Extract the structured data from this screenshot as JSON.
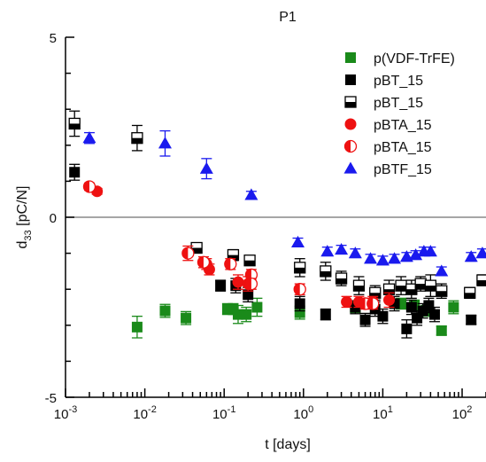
{
  "chart_data": {
    "type": "scatter",
    "title": "P1",
    "xlabel": "t [days]",
    "ylabel_main": "d",
    "ylabel_sub": "33",
    "ylabel_unit": " [pC/N]",
    "xscale": "log",
    "xlim": [
      0.001,
      200
    ],
    "ylim": [
      -5,
      5
    ],
    "x_ticks": [
      {
        "value": 0.001,
        "base": "10",
        "exp": "-3"
      },
      {
        "value": 0.01,
        "base": "10",
        "exp": "-2"
      },
      {
        "value": 0.1,
        "base": "10",
        "exp": "-1"
      },
      {
        "value": 1,
        "base": "10",
        "exp": "0"
      },
      {
        "value": 10,
        "base": "10",
        "exp": "1"
      },
      {
        "value": 100,
        "base": "10",
        "exp": "2"
      }
    ],
    "y_ticks": [
      {
        "value": -5,
        "label": "-5"
      },
      {
        "value": 0,
        "label": "0"
      },
      {
        "value": 5,
        "label": "5"
      }
    ],
    "reference_line": 0,
    "legend_position": "top-right",
    "series": [
      {
        "name": "p(VDF-TrFE)",
        "color": "#1a8a1a",
        "marker": "square",
        "fill": "full",
        "points": [
          [
            0.008,
            -3.05,
            0.3
          ],
          [
            0.018,
            -2.6,
            0.18
          ],
          [
            0.033,
            -2.8,
            0.18
          ],
          [
            0.11,
            -2.55,
            0.15
          ],
          [
            0.13,
            -2.55,
            0.15
          ],
          [
            0.15,
            -2.7,
            0.25
          ],
          [
            0.19,
            -2.7,
            0.2
          ],
          [
            0.26,
            -2.5,
            0.25
          ],
          [
            0.9,
            -2.65,
            0.18
          ],
          [
            4.5,
            -2.5,
            0.15
          ],
          [
            17,
            -2.4,
            0.15
          ],
          [
            25,
            -2.45,
            0.15
          ],
          [
            35,
            -2.6,
            0.15
          ],
          [
            55,
            -3.15,
            0.12
          ],
          [
            78,
            -2.5,
            0.18
          ]
        ]
      },
      {
        "name": "pBT_15",
        "color": "#000000",
        "marker": "square",
        "fill": "full",
        "points": [
          [
            0.0013,
            1.25,
            0.22
          ],
          [
            0.09,
            -1.9,
            0.15
          ],
          [
            0.14,
            -1.9,
            0.2
          ],
          [
            0.2,
            -2.15,
            0.2
          ],
          [
            0.9,
            -2.4,
            0.2
          ],
          [
            1.9,
            -2.7,
            0.15
          ],
          [
            4.5,
            -2.5,
            0.18
          ],
          [
            6,
            -2.85,
            0.18
          ],
          [
            8,
            -2.55,
            0.2
          ],
          [
            10,
            -2.75,
            0.2
          ],
          [
            14,
            -2.4,
            0.2
          ],
          [
            20,
            -3.1,
            0.25
          ],
          [
            23,
            -2.5,
            0.2
          ],
          [
            27,
            -2.8,
            0.2
          ],
          [
            32,
            -2.6,
            0.2
          ],
          [
            38,
            -2.45,
            0.2
          ],
          [
            45,
            -2.7,
            0.2
          ],
          [
            130,
            -2.85,
            0.12
          ]
        ]
      },
      {
        "name": "pBT_15",
        "color": "#000000",
        "marker": "square",
        "fill": "half-bottom",
        "points": [
          [
            0.0013,
            2.6,
            0.35
          ],
          [
            0.008,
            2.2,
            0.35
          ],
          [
            0.045,
            -0.85,
            0.12
          ],
          [
            0.13,
            -1.05,
            0.15
          ],
          [
            0.21,
            -1.2,
            0.12
          ],
          [
            0.9,
            -1.4,
            0.25
          ],
          [
            1.9,
            -1.5,
            0.25
          ],
          [
            3,
            -1.7,
            0.2
          ],
          [
            5,
            -1.9,
            0.25
          ],
          [
            8,
            -2.1,
            0.2
          ],
          [
            12,
            -2.0,
            0.25
          ],
          [
            17,
            -1.9,
            0.25
          ],
          [
            23,
            -2.0,
            0.25
          ],
          [
            30,
            -1.85,
            0.2
          ],
          [
            40,
            -1.9,
            0.3
          ],
          [
            55,
            -2.05,
            0.2
          ],
          [
            125,
            -2.1,
            0.15
          ],
          [
            180,
            -1.75,
            0.15
          ]
        ]
      },
      {
        "name": "pBTA_15",
        "color": "#ee1111",
        "marker": "circle",
        "fill": "full",
        "points": [
          [
            0.0025,
            0.72,
            0.08
          ],
          [
            0.06,
            -1.3,
            0.15
          ],
          [
            0.065,
            -1.45,
            0.15
          ],
          [
            0.15,
            -1.8,
            0.2
          ],
          [
            0.2,
            -1.85,
            0.2
          ],
          [
            3.5,
            -2.35,
            0.15
          ],
          [
            5,
            -2.35,
            0.15
          ],
          [
            7.5,
            -2.35,
            0.15
          ],
          [
            12,
            -2.3,
            0.2
          ]
        ]
      },
      {
        "name": "pBTA_15",
        "color": "#ee1111",
        "marker": "circle",
        "fill": "half-left",
        "points": [
          [
            0.002,
            0.85,
            0.1
          ],
          [
            0.035,
            -1.0,
            0.2
          ],
          [
            0.055,
            -1.25,
            0.15
          ],
          [
            0.12,
            -1.3,
            0.15
          ],
          [
            0.22,
            -1.6,
            0.15
          ],
          [
            0.22,
            -1.85,
            0.15
          ],
          [
            0.9,
            -2.0,
            0.15
          ],
          [
            6,
            -2.4,
            0.15
          ],
          [
            7.5,
            -2.4,
            0.15
          ]
        ]
      },
      {
        "name": "pBTF_15",
        "color": "#1a1aee",
        "marker": "triangle",
        "fill": "full",
        "points": [
          [
            0.002,
            2.2,
            0.15
          ],
          [
            0.018,
            2.05,
            0.35
          ],
          [
            0.06,
            1.35,
            0.28
          ],
          [
            0.22,
            0.62,
            0.1
          ],
          [
            0.85,
            -0.7,
            0.12
          ],
          [
            2,
            -0.95,
            0.12
          ],
          [
            3,
            -0.9,
            0.12
          ],
          [
            4.5,
            -1.0,
            0.12
          ],
          [
            7,
            -1.15,
            0.12
          ],
          [
            10,
            -1.2,
            0.12
          ],
          [
            14,
            -1.15,
            0.12
          ],
          [
            20,
            -1.1,
            0.12
          ],
          [
            26,
            -1.05,
            0.12
          ],
          [
            33,
            -0.95,
            0.12
          ],
          [
            40,
            -0.95,
            0.12
          ],
          [
            55,
            -1.5,
            0.12
          ],
          [
            130,
            -1.1,
            0.12
          ],
          [
            180,
            -1.0,
            0.12
          ]
        ]
      }
    ]
  }
}
